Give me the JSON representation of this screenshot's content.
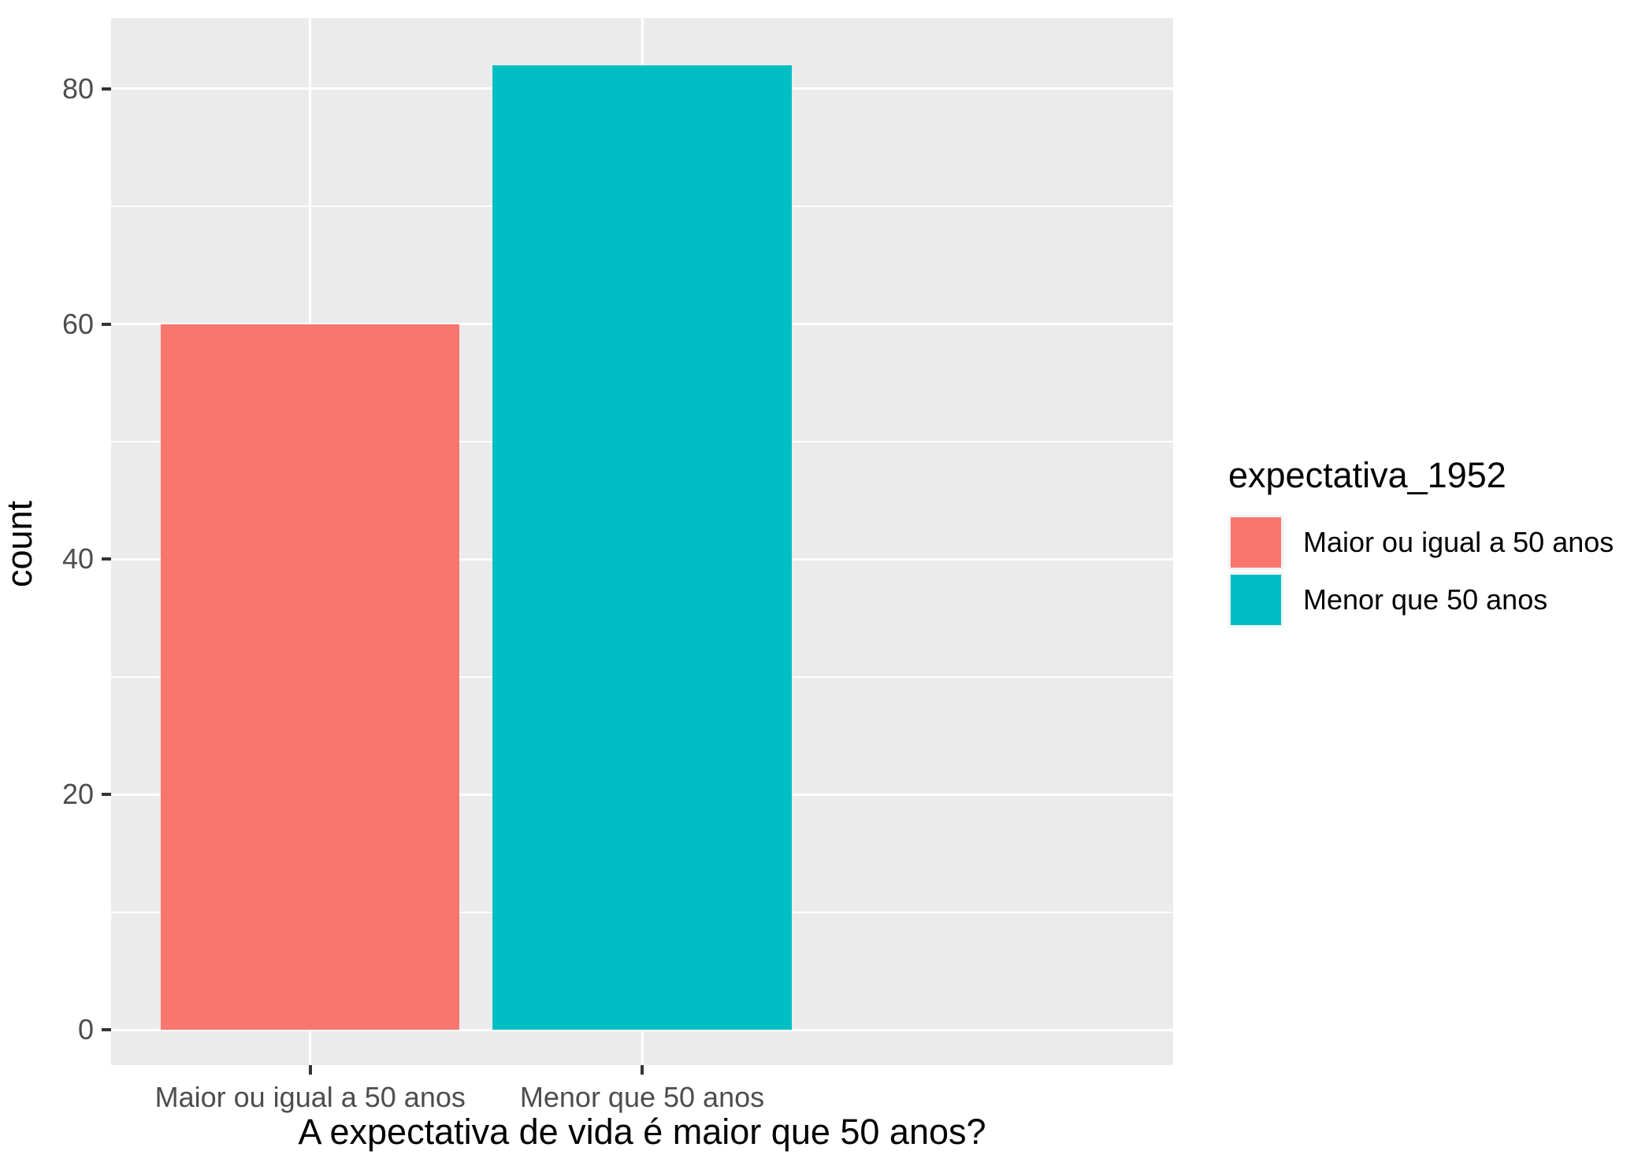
{
  "chart_data": {
    "type": "bar",
    "title": "",
    "xlabel": "A expectativa de vida é maior que 50 anos?",
    "ylabel": "count",
    "categories": [
      "Maior ou igual a 50 anos",
      "Menor que 50 anos"
    ],
    "values": [
      60,
      82
    ],
    "colors": [
      "#F8766D",
      "#00BFC4"
    ],
    "y_ticks": [
      0,
      20,
      40,
      60,
      80
    ],
    "ylim": [
      -3,
      86
    ],
    "grid": "white major and minor horizontal lines, white vertical line at each category, on gray panel",
    "panel_bg": "#EBEBEB",
    "tick_label_color": "#4D4D4D",
    "legend": {
      "title": "expectativa_1952",
      "position": "right",
      "items": [
        {
          "label": "Maior ou igual a 50 anos",
          "color": "#F8766D"
        },
        {
          "label": "Menor que 50 anos",
          "color": "#00BFC4"
        }
      ]
    }
  }
}
